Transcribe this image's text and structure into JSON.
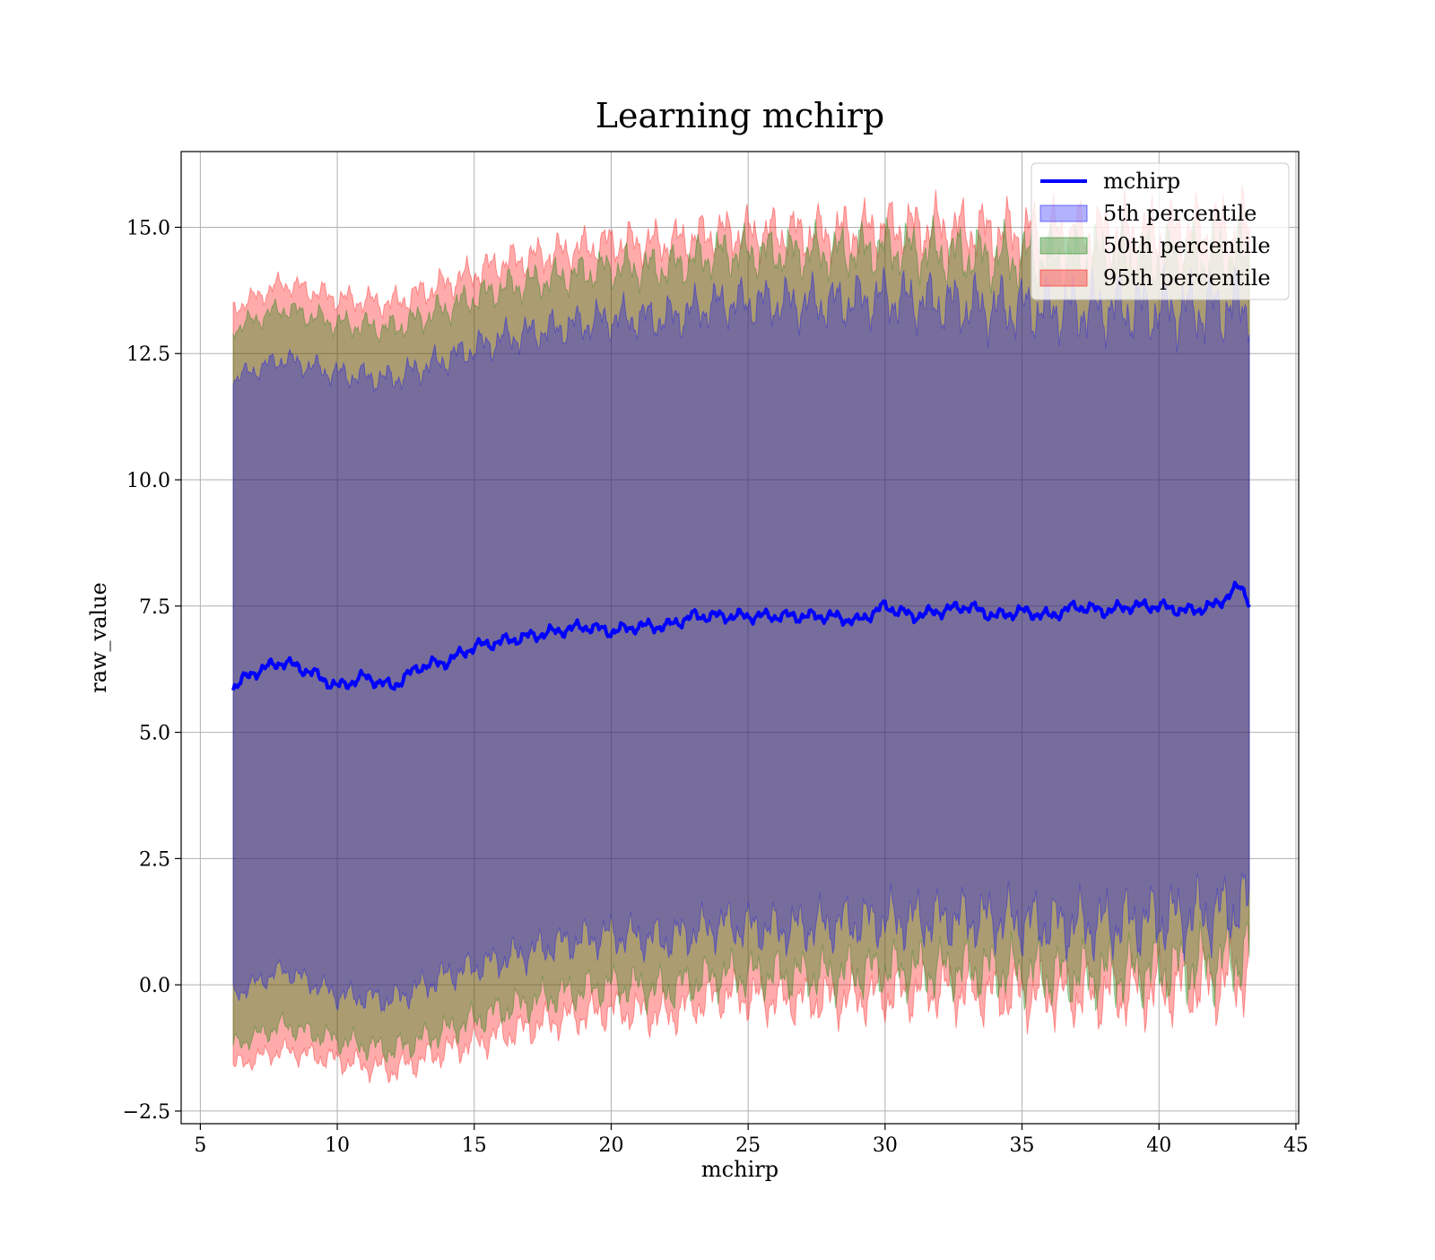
{
  "chart_data": {
    "type": "area",
    "title": "Learning mchirp",
    "xlabel": "mchirp",
    "ylabel": "raw_value",
    "xlim": [
      4.3,
      45.1
    ],
    "ylim": [
      -2.75,
      16.5
    ],
    "x_ticks": [
      "5",
      "10",
      "15",
      "20",
      "25",
      "30",
      "35",
      "40",
      "45"
    ],
    "x_tick_values": [
      5,
      10,
      15,
      20,
      25,
      30,
      35,
      40,
      45
    ],
    "y_ticks": [
      "−2.5",
      "0.0",
      "2.5",
      "5.0",
      "7.5",
      "10.0",
      "12.5",
      "15.0"
    ],
    "y_tick_values": [
      -2.5,
      0,
      2.5,
      5,
      7.5,
      10,
      12.5,
      15
    ],
    "grid": true,
    "legend_position": "top-right",
    "x_range": [
      6.2,
      43.3
    ],
    "series": [
      {
        "name": "mchirp",
        "kind": "line",
        "color": "#0000ff",
        "x": [
          6.2,
          7,
          8,
          9,
          10,
          11,
          12,
          13,
          14,
          15,
          16,
          17,
          18,
          19,
          20,
          21,
          22,
          23,
          24,
          25,
          26,
          27,
          28,
          29,
          30,
          31,
          32,
          33,
          34,
          35,
          36,
          37,
          38,
          39,
          40,
          41,
          42,
          43,
          43.3
        ],
        "y": [
          5.9,
          6.2,
          6.4,
          6.2,
          5.9,
          6.1,
          5.9,
          6.3,
          6.4,
          6.7,
          6.8,
          6.9,
          7.0,
          7.1,
          7.0,
          7.1,
          7.1,
          7.3,
          7.3,
          7.3,
          7.3,
          7.3,
          7.3,
          7.2,
          7.5,
          7.3,
          7.4,
          7.5,
          7.3,
          7.4,
          7.3,
          7.5,
          7.4,
          7.5,
          7.5,
          7.4,
          7.5,
          7.9,
          7.6
        ]
      },
      {
        "name": "5th percentile",
        "kind": "band",
        "color": "#0000ff",
        "x": [
          6.2,
          8,
          10,
          12,
          14,
          16,
          18,
          20,
          22,
          24,
          26,
          28,
          30,
          32,
          34,
          36,
          38,
          40,
          42,
          43.3
        ],
        "lower": [
          -0.2,
          0.3,
          -0.2,
          -0.3,
          0.2,
          0.5,
          0.8,
          1.0,
          0.9,
          1.2,
          1.1,
          1.2,
          1.3,
          1.3,
          1.3,
          1.2,
          1.2,
          1.3,
          1.4,
          1.6
        ],
        "upper": [
          12.0,
          12.4,
          12.1,
          12.0,
          12.4,
          12.8,
          13.0,
          13.2,
          13.2,
          13.5,
          13.5,
          13.5,
          13.6,
          13.5,
          13.4,
          13.4,
          13.4,
          13.4,
          13.4,
          13.5
        ]
      },
      {
        "name": "50th percentile",
        "kind": "band",
        "color": "#008000",
        "x": [
          6.2,
          8,
          10,
          12,
          14,
          16,
          18,
          20,
          22,
          24,
          26,
          28,
          30,
          32,
          34,
          36,
          38,
          40,
          42,
          43.3
        ],
        "lower": [
          -1.2,
          -0.8,
          -1.1,
          -1.3,
          -0.9,
          -0.5,
          -0.2,
          0.0,
          -0.1,
          0.2,
          0.2,
          0.2,
          0.3,
          0.3,
          0.3,
          0.2,
          0.2,
          0.3,
          0.4,
          0.6
        ],
        "upper": [
          13.0,
          13.4,
          13.1,
          13.0,
          13.4,
          13.8,
          14.0,
          14.2,
          14.2,
          14.5,
          14.5,
          14.5,
          14.6,
          14.5,
          14.4,
          14.4,
          14.4,
          14.4,
          14.4,
          14.5
        ]
      },
      {
        "name": "95th percentile",
        "kind": "band",
        "color": "#ff0000",
        "x": [
          6.2,
          8,
          10,
          12,
          14,
          16,
          18,
          20,
          22,
          24,
          26,
          28,
          30,
          32,
          34,
          36,
          38,
          40,
          42,
          43.3
        ],
        "lower": [
          -1.6,
          -1.3,
          -1.5,
          -1.7,
          -1.3,
          -1.0,
          -0.7,
          -0.5,
          -0.6,
          -0.2,
          -0.3,
          -0.3,
          -0.2,
          -0.1,
          -0.2,
          -0.2,
          -0.2,
          -0.1,
          0.0,
          0.2
        ],
        "upper": [
          13.4,
          13.9,
          13.6,
          13.5,
          13.9,
          14.3,
          14.5,
          14.7,
          14.7,
          14.9,
          14.9,
          14.9,
          15.0,
          15.0,
          14.9,
          14.9,
          14.9,
          14.9,
          14.9,
          15.0
        ]
      }
    ]
  }
}
